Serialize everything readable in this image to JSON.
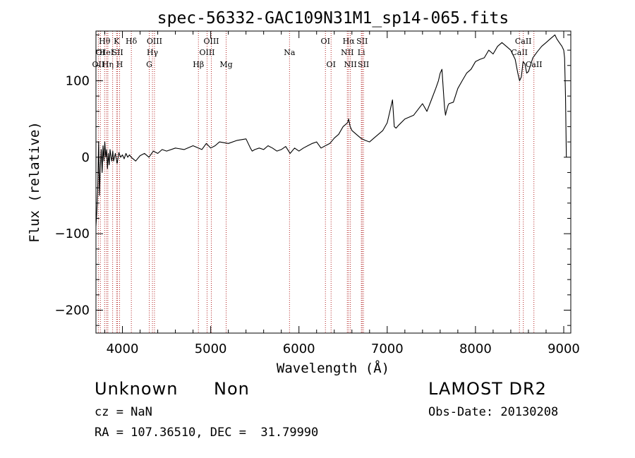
{
  "chart_data": {
    "type": "line",
    "title": "spec-56332-GAC109N31M1_sp14-065.fits",
    "xlabel": "Wavelength (Å)",
    "ylabel": "Flux (relative)",
    "xlim": [
      3700,
      9080
    ],
    "ylim": [
      -230,
      165
    ],
    "xticks": [
      4000,
      5000,
      6000,
      7000,
      8000,
      9000
    ],
    "yticks": [
      -200,
      -100,
      0,
      100
    ],
    "xtick_labels": [
      "4000",
      "5000",
      "6000",
      "7000",
      "8000",
      "9000"
    ],
    "ytick_labels": [
      "−200",
      "−100",
      "0",
      "100"
    ],
    "grid": false,
    "line_color": "#000000",
    "marker_color": "#b22222",
    "series": [
      {
        "x": [
          3700,
          3710,
          3720,
          3730,
          3740,
          3750,
          3760,
          3770,
          3780,
          3790,
          3800,
          3810,
          3820,
          3830,
          3840,
          3850,
          3860,
          3870,
          3880,
          3890,
          3900,
          3920,
          3940,
          3960,
          3980,
          4000,
          4020,
          4040,
          4060,
          4080,
          4100,
          4150,
          4200,
          4250,
          4300,
          4350,
          4400,
          4450,
          4500,
          4600,
          4700,
          4800,
          4900,
          4950,
          5000,
          5050,
          5100,
          5200,
          5300,
          5400,
          5450,
          5470,
          5500,
          5550,
          5600,
          5650,
          5700,
          5750,
          5800,
          5850,
          5900,
          5950,
          6000,
          6050,
          6100,
          6150,
          6200,
          6250,
          6300,
          6350,
          6400,
          6450,
          6500,
          6550,
          6563,
          6580,
          6600,
          6650,
          6700,
          6750,
          6800,
          6850,
          6900,
          6950,
          7000,
          7030,
          7060,
          7080,
          7100,
          7130,
          7200,
          7300,
          7400,
          7450,
          7500,
          7550,
          7580,
          7600,
          7620,
          7640,
          7650,
          7660,
          7670,
          7690,
          7700,
          7750,
          7800,
          7850,
          7900,
          7950,
          8000,
          8050,
          8100,
          8150,
          8200,
          8250,
          8300,
          8350,
          8400,
          8450,
          8480,
          8500,
          8520,
          8540,
          8560,
          8580,
          8600,
          8650,
          8700,
          8750,
          8800,
          8850,
          8900,
          8920,
          8950,
          8980,
          9000,
          9010,
          9020,
          9030
        ],
        "y": [
          -90,
          -70,
          -40,
          20,
          -50,
          -10,
          10,
          -20,
          15,
          -5,
          20,
          0,
          10,
          -15,
          5,
          -10,
          10,
          0,
          -5,
          8,
          -5,
          5,
          -8,
          6,
          0,
          3,
          -2,
          5,
          0,
          3,
          0,
          -5,
          2,
          5,
          0,
          8,
          5,
          10,
          8,
          12,
          10,
          15,
          10,
          18,
          12,
          15,
          20,
          18,
          22,
          24,
          12,
          8,
          10,
          12,
          10,
          15,
          12,
          8,
          10,
          14,
          5,
          12,
          8,
          12,
          15,
          18,
          20,
          12,
          15,
          18,
          25,
          30,
          40,
          45,
          50,
          40,
          35,
          30,
          25,
          22,
          20,
          25,
          30,
          35,
          45,
          60,
          75,
          40,
          38,
          42,
          50,
          55,
          70,
          60,
          75,
          90,
          100,
          110,
          115,
          80,
          65,
          55,
          60,
          68,
          70,
          72,
          90,
          100,
          110,
          115,
          125,
          128,
          130,
          140,
          135,
          145,
          150,
          145,
          140,
          128,
          110,
          100,
          105,
          125,
          122,
          110,
          112,
          130,
          138,
          145,
          150,
          155,
          160,
          155,
          150,
          145,
          140,
          130,
          80,
          0
        ]
      }
    ],
    "line_markers": [
      {
        "wavelength": 3727,
        "label": "OII",
        "row": 3
      },
      {
        "wavelength": 3750,
        "label": "OI",
        "row": 2
      },
      {
        "wavelength": 3798,
        "label": "Hθ",
        "row": 1
      },
      {
        "wavelength": 3820,
        "label": "HeI",
        "row": 2
      },
      {
        "wavelength": 3835,
        "label": "Hη",
        "row": 3
      },
      {
        "wavelength": 3889,
        "label": "",
        "row": 0
      },
      {
        "wavelength": 3934,
        "label": "K",
        "row": 1
      },
      {
        "wavelength": 3945,
        "label": "SII",
        "row": 2
      },
      {
        "wavelength": 3968,
        "label": "H",
        "row": 3
      },
      {
        "wavelength": 4101,
        "label": "Hδ",
        "row": 1
      },
      {
        "wavelength": 4304,
        "label": "G",
        "row": 3
      },
      {
        "wavelength": 4340,
        "label": "Hγ",
        "row": 2
      },
      {
        "wavelength": 4363,
        "label": "OIII",
        "row": 1
      },
      {
        "wavelength": 4861,
        "label": "Hβ",
        "row": 3
      },
      {
        "wavelength": 4959,
        "label": "OIII",
        "row": 2
      },
      {
        "wavelength": 5007,
        "label": "OIII",
        "row": 1
      },
      {
        "wavelength": 5175,
        "label": "Mg",
        "row": 3
      },
      {
        "wavelength": 5893,
        "label": "Na",
        "row": 2
      },
      {
        "wavelength": 6300,
        "label": "OI",
        "row": 1
      },
      {
        "wavelength": 6364,
        "label": "OI",
        "row": 3
      },
      {
        "wavelength": 6548,
        "label": "NII",
        "row": 2
      },
      {
        "wavelength": 6563,
        "label": "Hα",
        "row": 1
      },
      {
        "wavelength": 6583,
        "label": "NII",
        "row": 3
      },
      {
        "wavelength": 6707,
        "label": "Li",
        "row": 2
      },
      {
        "wavelength": 6716,
        "label": "SII",
        "row": 1
      },
      {
        "wavelength": 6731,
        "label": "SII",
        "row": 3
      },
      {
        "wavelength": 8498,
        "label": "CaII",
        "row": 2
      },
      {
        "wavelength": 8542,
        "label": "CaII",
        "row": 1
      },
      {
        "wavelength": 8662,
        "label": "CaII",
        "row": 3
      }
    ]
  },
  "info": {
    "object_class": "Unknown",
    "subclass": "Non",
    "survey": "LAMOST DR2",
    "redshift": "cz = NaN",
    "obs_date": "Obs-Date: 20130208",
    "coords": "RA = 107.36510, DEC =  31.79990"
  }
}
